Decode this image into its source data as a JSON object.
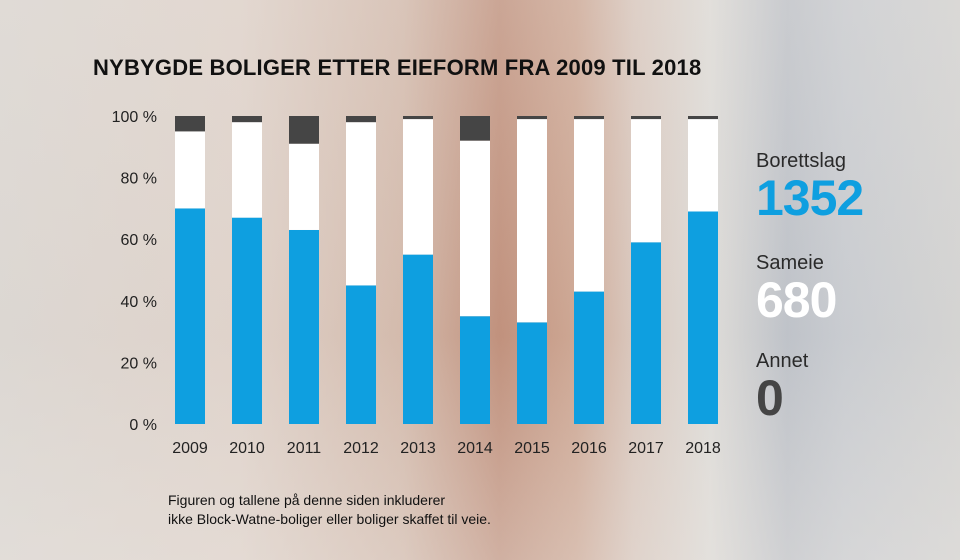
{
  "title": "NYBYGDE BOLIGER ETTER EIEFORM FRA 2009 TIL 2018",
  "chart_data": {
    "type": "bar",
    "stacked": true,
    "categories": [
      "2009",
      "2010",
      "2011",
      "2012",
      "2013",
      "2014",
      "2015",
      "2016",
      "2017",
      "2018"
    ],
    "series": [
      {
        "name": "Borettslag",
        "color": "#0e9fe0",
        "values": [
          70,
          67,
          63,
          45,
          55,
          35,
          33,
          43,
          59,
          69
        ]
      },
      {
        "name": "Sameie",
        "color": "#ffffff",
        "values": [
          25,
          31,
          28,
          53,
          44,
          57,
          66,
          56,
          40,
          30
        ]
      },
      {
        "name": "Annet",
        "color": "#454545",
        "values": [
          5,
          2,
          9,
          2,
          1,
          8,
          1,
          1,
          1,
          1
        ]
      }
    ],
    "ylim": [
      0,
      100
    ],
    "yticks": [
      "0 %",
      "20 %",
      "40 %",
      "60 %",
      "80 %",
      "100 %"
    ],
    "grid": false
  },
  "legend": {
    "borettslag": {
      "label": "Borettslag",
      "value": "1352",
      "color": "#0e9fe0"
    },
    "sameie": {
      "label": "Sameie",
      "value": "680",
      "color": "#ffffff"
    },
    "annet": {
      "label": "Annet",
      "value": "0",
      "color": "#454545"
    }
  },
  "footnote": {
    "line1": "Figuren og tallene på denne siden inkluderer",
    "line2": "ikke Block-Watne-boliger eller boliger skaffet til veie."
  }
}
